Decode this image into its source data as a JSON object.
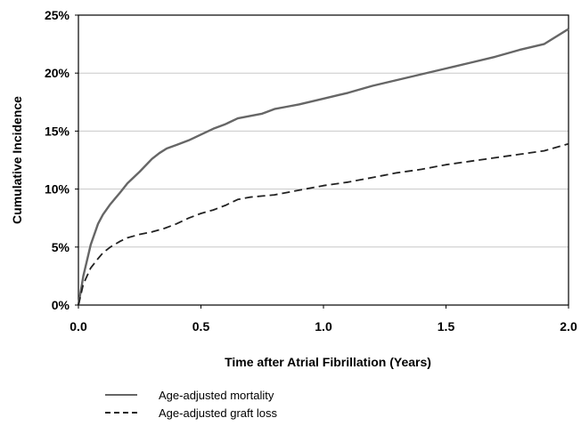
{
  "chart_data": {
    "type": "line",
    "xlabel": "Time after Atrial Fibrillation (Years)",
    "ylabel": "Cumulative Incidence",
    "xlim": [
      0,
      2.0
    ],
    "ylim": [
      0,
      25
    ],
    "x_ticks": [
      "0.0",
      "0.5",
      "1.0",
      "1.5",
      "2.0"
    ],
    "y_ticks": [
      "0%",
      "5%",
      "10%",
      "15%",
      "20%",
      "25%"
    ],
    "grid": "horizontal",
    "legend_position": "bottom-left",
    "series": [
      {
        "name": "Age-adjusted mortality",
        "style": "solid",
        "color": "#666666",
        "x": [
          0,
          0.02,
          0.05,
          0.08,
          0.1,
          0.13,
          0.17,
          0.2,
          0.25,
          0.3,
          0.33,
          0.36,
          0.4,
          0.45,
          0.5,
          0.55,
          0.6,
          0.65,
          0.7,
          0.75,
          0.8,
          0.85,
          0.9,
          1.0,
          1.1,
          1.2,
          1.3,
          1.4,
          1.5,
          1.6,
          1.7,
          1.8,
          1.9,
          2.0
        ],
        "values": [
          0,
          2.5,
          5.2,
          7.0,
          7.8,
          8.7,
          9.7,
          10.5,
          11.5,
          12.6,
          13.1,
          13.5,
          13.8,
          14.2,
          14.7,
          15.2,
          15.6,
          16.1,
          16.3,
          16.5,
          16.9,
          17.1,
          17.3,
          17.8,
          18.3,
          18.9,
          19.4,
          19.9,
          20.4,
          20.9,
          21.4,
          22.0,
          22.5,
          23.8
        ]
      },
      {
        "name": "Age-adjusted graft loss",
        "style": "dashed",
        "color": "#222222",
        "x": [
          0,
          0.02,
          0.05,
          0.08,
          0.1,
          0.13,
          0.17,
          0.2,
          0.25,
          0.3,
          0.35,
          0.4,
          0.45,
          0.5,
          0.55,
          0.6,
          0.65,
          0.7,
          0.75,
          0.8,
          0.9,
          1.0,
          1.1,
          1.2,
          1.3,
          1.4,
          1.5,
          1.6,
          1.7,
          1.8,
          1.9,
          2.0
        ],
        "values": [
          0,
          1.8,
          3.2,
          4.0,
          4.5,
          5.0,
          5.5,
          5.8,
          6.1,
          6.3,
          6.6,
          7.0,
          7.5,
          7.9,
          8.2,
          8.6,
          9.1,
          9.3,
          9.4,
          9.5,
          9.9,
          10.3,
          10.6,
          11.0,
          11.4,
          11.7,
          12.1,
          12.4,
          12.7,
          13.0,
          13.3,
          13.9
        ]
      }
    ]
  }
}
